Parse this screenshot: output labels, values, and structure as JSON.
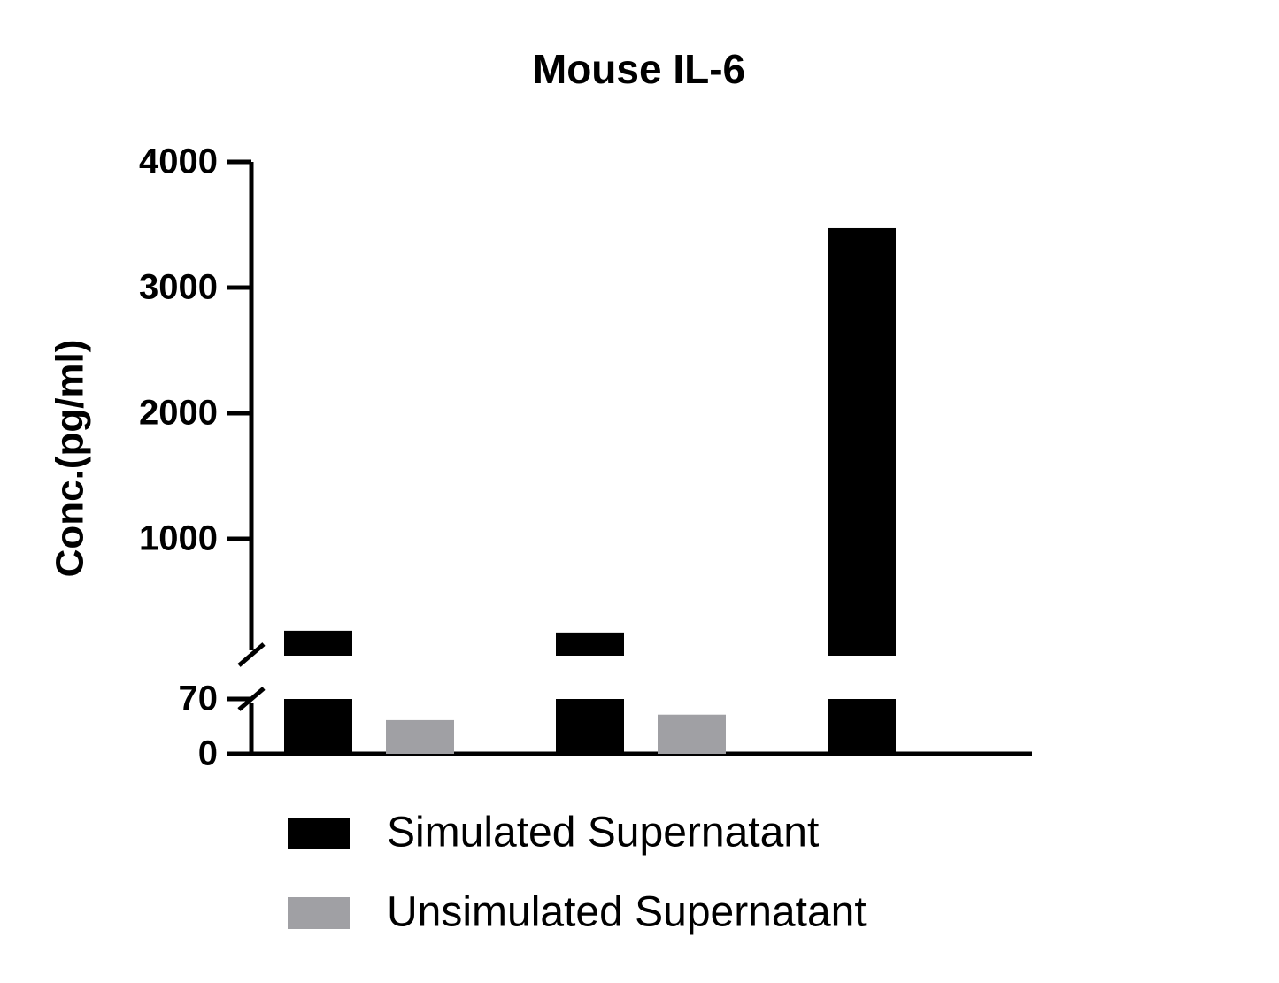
{
  "chart_data": {
    "type": "bar",
    "title": "Mouse IL-6",
    "y_label": "Conc.(pg/ml)",
    "categories": [
      null,
      null,
      null
    ],
    "series": [
      {
        "name": "Simulated Supernatant",
        "color": "#000000",
        "values": [
          268,
          254,
          3472
        ]
      },
      {
        "name": "Unsimulated Supernatant",
        "color": "#a0a0a4",
        "values": [
          43,
          50,
          null
        ]
      }
    ],
    "y_segments": [
      {
        "ylim": [
          0,
          70
        ],
        "yticks": [
          0,
          70
        ]
      },
      {
        "ylim": [
          70,
          4000
        ],
        "yticks": [
          1000,
          2000,
          3000,
          4000
        ]
      }
    ]
  }
}
